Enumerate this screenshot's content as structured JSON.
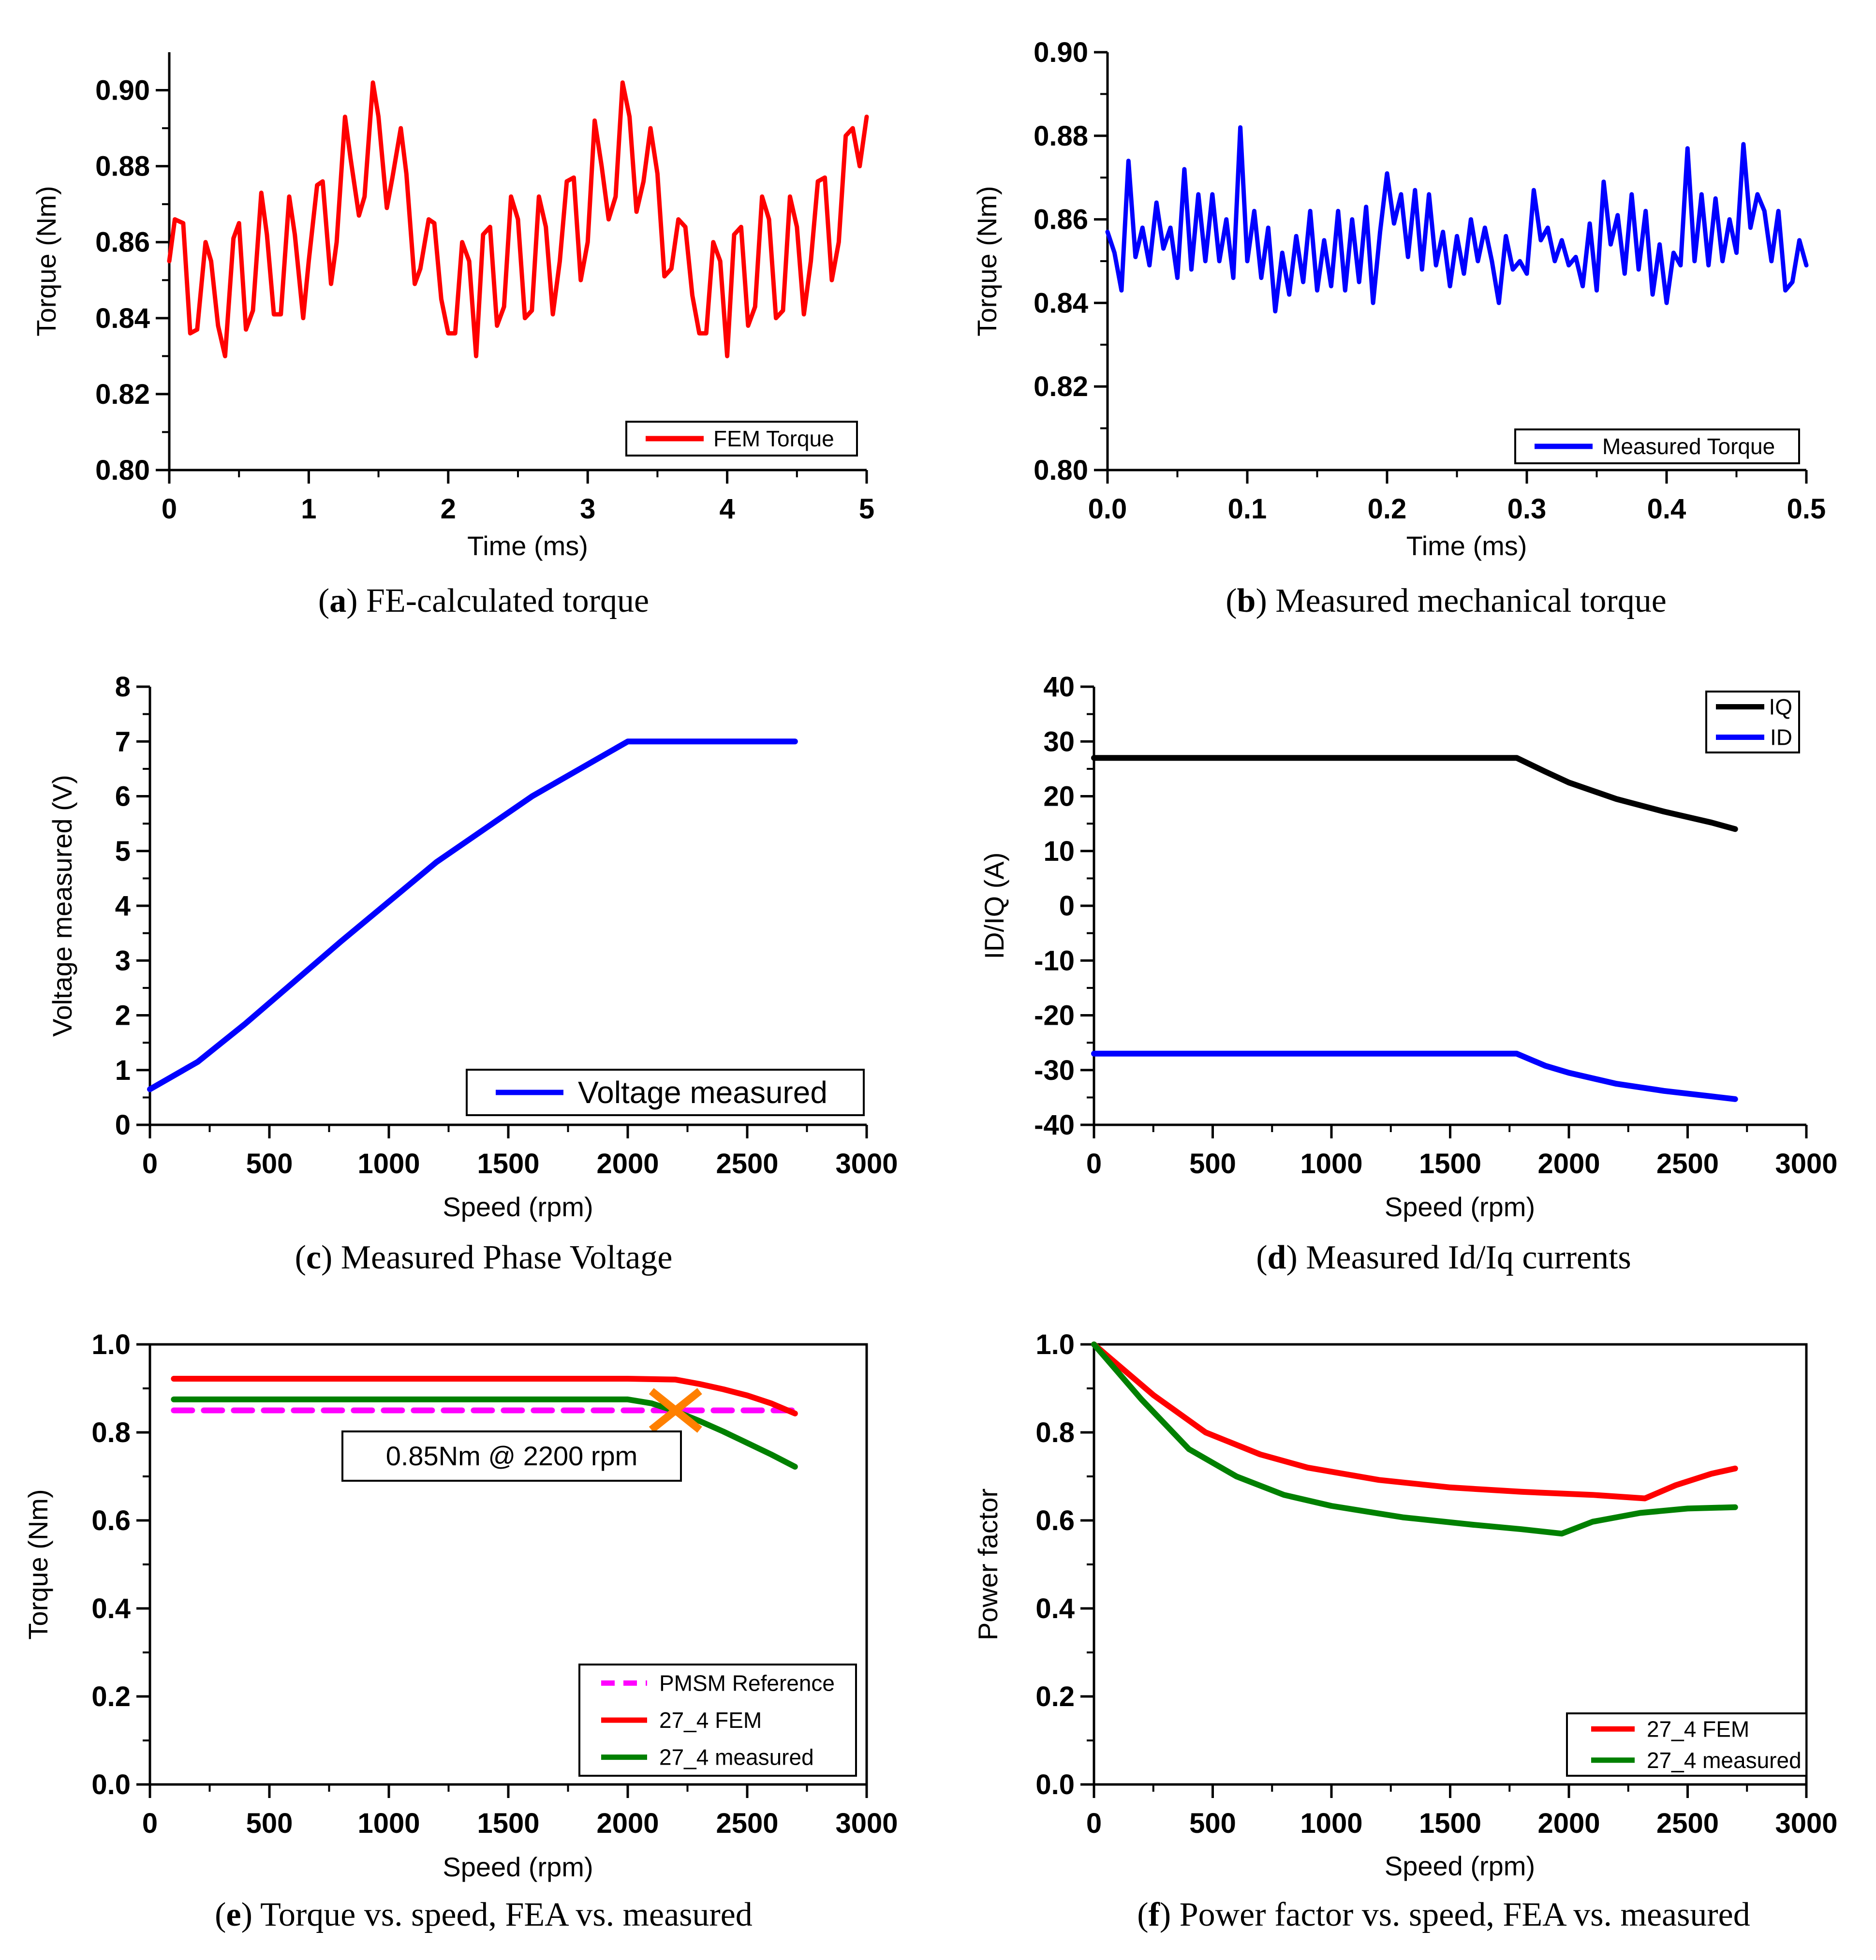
{
  "chart_data": [
    {
      "id": "a",
      "type": "line",
      "caption_letter": "a",
      "caption_text": "FE-calculated torque",
      "xlabel": "Time (ms)",
      "ylabel": "Torque (Nm)",
      "xlim": [
        0,
        5
      ],
      "ylim": [
        0.8,
        0.91
      ],
      "xticks": [
        0,
        1,
        2,
        3,
        4,
        5
      ],
      "xtick_labels": [
        "0",
        "1",
        "2",
        "3",
        "4",
        "5"
      ],
      "yticks": [
        0.8,
        0.82,
        0.84,
        0.86,
        0.88,
        0.9
      ],
      "ytick_labels": [
        "0.80",
        "0.82",
        "0.84",
        "0.86",
        "0.88",
        "0.90"
      ],
      "legend_position": "bottom-right",
      "series": [
        {
          "name": "FEM Torque",
          "color": "#ff0000",
          "x": [
            0,
            0.04,
            0.1,
            0.15,
            0.2,
            0.26,
            0.3,
            0.35,
            0.4,
            0.46,
            0.5,
            0.55,
            0.6,
            0.66,
            0.7,
            0.75,
            0.8,
            0.86,
            0.9,
            0.96,
            1.0,
            1.06,
            1.1,
            1.16,
            1.2,
            1.26,
            1.3,
            1.36,
            1.4,
            1.46,
            1.5,
            1.56,
            1.6,
            1.66,
            1.7,
            1.76,
            1.8,
            1.86,
            1.9,
            1.95,
            2.0,
            2.05,
            2.1,
            2.15,
            2.2,
            2.25,
            2.3,
            2.35,
            2.4,
            2.45,
            2.5,
            2.55,
            2.6,
            2.65,
            2.7,
            2.75,
            2.8,
            2.85,
            2.9,
            2.95,
            3.0,
            3.05,
            3.1,
            3.15,
            3.2,
            3.25,
            3.3,
            3.35,
            3.4,
            3.45,
            3.5,
            3.55,
            3.6,
            3.65,
            3.7,
            3.75,
            3.8,
            3.85,
            3.9,
            3.95,
            4.0,
            4.05,
            4.1,
            4.15,
            4.2,
            4.25,
            4.3,
            4.35,
            4.4,
            4.45,
            4.5,
            4.55,
            4.6,
            4.65,
            4.7,
            4.75,
            4.8,
            4.85,
            4.9,
            4.95,
            5.0
          ],
          "y": [
            0.855,
            0.866,
            0.865,
            0.836,
            0.837,
            0.86,
            0.855,
            0.838,
            0.83,
            0.861,
            0.865,
            0.837,
            0.842,
            0.873,
            0.862,
            0.841,
            0.841,
            0.872,
            0.862,
            0.84,
            0.855,
            0.875,
            0.876,
            0.849,
            0.86,
            0.893,
            0.882,
            0.867,
            0.872,
            0.902,
            0.893,
            0.869,
            0.877,
            0.89,
            0.878,
            0.849,
            0.853,
            0.866,
            0.865,
            0.845,
            0.836,
            0.836,
            0.86,
            0.855,
            0.83,
            0.862,
            0.864,
            0.838,
            0.843,
            0.872,
            0.866,
            0.84,
            0.842,
            0.872,
            0.864,
            0.841,
            0.855,
            0.876,
            0.877,
            0.85,
            0.86,
            0.892,
            0.88,
            0.866,
            0.872,
            0.902,
            0.893,
            0.868,
            0.876,
            0.89,
            0.878,
            0.851,
            0.853,
            0.866,
            0.864,
            0.846,
            0.836,
            0.836,
            0.86,
            0.855,
            0.83,
            0.862,
            0.864,
            0.838,
            0.843,
            0.872,
            0.866,
            0.84,
            0.842,
            0.872,
            0.864,
            0.841,
            0.855,
            0.876,
            0.877,
            0.85,
            0.86,
            0.888,
            0.89,
            0.88,
            0.893
          ]
        }
      ]
    },
    {
      "id": "b",
      "type": "line",
      "caption_letter": "b",
      "caption_text": "Measured mechanical torque",
      "xlabel": "Time (ms)",
      "ylabel": "Torque (Nm)",
      "xlim": [
        0,
        0.5
      ],
      "ylim": [
        0.8,
        0.9
      ],
      "xticks": [
        0,
        0.1,
        0.2,
        0.3,
        0.4,
        0.5
      ],
      "xtick_labels": [
        "0.0",
        "0.1",
        "0.2",
        "0.3",
        "0.4",
        "0.5"
      ],
      "yticks": [
        0.8,
        0.82,
        0.84,
        0.86,
        0.88,
        0.9
      ],
      "ytick_labels": [
        "0.80",
        "0.82",
        "0.84",
        "0.86",
        "0.88",
        "0.90"
      ],
      "legend_position": "bottom-right",
      "series": [
        {
          "name": "Measured Torque",
          "color": "#0000ff",
          "x": [
            0,
            0.005,
            0.01,
            0.015,
            0.02,
            0.025,
            0.03,
            0.035,
            0.04,
            0.045,
            0.05,
            0.055,
            0.06,
            0.065,
            0.07,
            0.075,
            0.08,
            0.085,
            0.09,
            0.095,
            0.1,
            0.105,
            0.11,
            0.115,
            0.12,
            0.125,
            0.13,
            0.135,
            0.14,
            0.145,
            0.15,
            0.155,
            0.16,
            0.165,
            0.17,
            0.175,
            0.18,
            0.185,
            0.19,
            0.195,
            0.2,
            0.205,
            0.21,
            0.215,
            0.22,
            0.225,
            0.23,
            0.235,
            0.24,
            0.245,
            0.25,
            0.255,
            0.26,
            0.265,
            0.27,
            0.275,
            0.28,
            0.285,
            0.29,
            0.295,
            0.3,
            0.305,
            0.31,
            0.315,
            0.32,
            0.325,
            0.33,
            0.335,
            0.34,
            0.345,
            0.35,
            0.355,
            0.36,
            0.365,
            0.37,
            0.375,
            0.38,
            0.385,
            0.39,
            0.395,
            0.4,
            0.405,
            0.41,
            0.415,
            0.42,
            0.425,
            0.43,
            0.435,
            0.44,
            0.445,
            0.45,
            0.455,
            0.46,
            0.465,
            0.47,
            0.475,
            0.48,
            0.485,
            0.49,
            0.495,
            0.5
          ],
          "y": [
            0.857,
            0.852,
            0.843,
            0.874,
            0.851,
            0.858,
            0.849,
            0.864,
            0.853,
            0.858,
            0.846,
            0.872,
            0.848,
            0.866,
            0.85,
            0.866,
            0.85,
            0.86,
            0.846,
            0.882,
            0.85,
            0.862,
            0.846,
            0.858,
            0.838,
            0.852,
            0.842,
            0.856,
            0.845,
            0.862,
            0.843,
            0.855,
            0.844,
            0.862,
            0.843,
            0.86,
            0.845,
            0.863,
            0.84,
            0.857,
            0.871,
            0.859,
            0.866,
            0.851,
            0.867,
            0.848,
            0.866,
            0.849,
            0.857,
            0.844,
            0.856,
            0.847,
            0.86,
            0.85,
            0.858,
            0.85,
            0.84,
            0.856,
            0.848,
            0.85,
            0.847,
            0.867,
            0.855,
            0.858,
            0.85,
            0.855,
            0.849,
            0.851,
            0.844,
            0.859,
            0.843,
            0.869,
            0.854,
            0.861,
            0.847,
            0.866,
            0.848,
            0.862,
            0.842,
            0.854,
            0.84,
            0.852,
            0.849,
            0.877,
            0.85,
            0.866,
            0.849,
            0.865,
            0.85,
            0.86,
            0.852,
            0.878,
            0.858,
            0.866,
            0.862,
            0.85,
            0.862,
            0.843,
            0.845,
            0.855,
            0.849
          ]
        }
      ]
    },
    {
      "id": "c",
      "type": "line",
      "caption_letter": "c",
      "caption_text": "Measured Phase Voltage",
      "xlabel": "Speed (rpm)",
      "ylabel": "Voltage measured (V)",
      "xlim": [
        0,
        3000
      ],
      "ylim": [
        0,
        8
      ],
      "xticks": [
        0,
        500,
        1000,
        1500,
        2000,
        2500,
        3000
      ],
      "xtick_labels": [
        "0",
        "500",
        "1000",
        "1500",
        "2000",
        "2500",
        "3000"
      ],
      "yticks": [
        0,
        1,
        2,
        3,
        4,
        5,
        6,
        7,
        8
      ],
      "ytick_labels": [
        "0",
        "1",
        "2",
        "3",
        "4",
        "5",
        "6",
        "7",
        "8"
      ],
      "legend_position": "bottom-right",
      "series": [
        {
          "name": "Voltage measured",
          "color": "#0000ff",
          "x": [
            0,
            200,
            400,
            800,
            1200,
            1600,
            2000,
            2300,
            2700
          ],
          "y": [
            0.65,
            1.15,
            1.85,
            3.35,
            4.8,
            6.0,
            7.0,
            7.0,
            7.0
          ]
        }
      ]
    },
    {
      "id": "d",
      "type": "line",
      "caption_letter": "d",
      "caption_text": "Measured Id/Iq currents",
      "xlabel": "Speed (rpm)",
      "ylabel": "ID/IQ (A)",
      "xlim": [
        0,
        3000
      ],
      "ylim": [
        -40,
        40
      ],
      "xticks": [
        0,
        500,
        1000,
        1500,
        2000,
        2500,
        3000
      ],
      "xtick_labels": [
        "0",
        "500",
        "1000",
        "1500",
        "2000",
        "2500",
        "3000"
      ],
      "yticks": [
        -40,
        -30,
        -20,
        -10,
        0,
        10,
        20,
        30,
        40
      ],
      "ytick_labels": [
        "-40",
        "-30",
        "-20",
        "-10",
        "0",
        "10",
        "20",
        "30",
        "40"
      ],
      "legend_position": "top-right",
      "series": [
        {
          "name": "IQ",
          "color": "#000000",
          "x": [
            0,
            500,
            1000,
            1500,
            1780,
            1900,
            2000,
            2200,
            2400,
            2600,
            2700
          ],
          "y": [
            27,
            27,
            27,
            27,
            27,
            24.5,
            22.5,
            19.5,
            17.2,
            15.2,
            14
          ]
        },
        {
          "name": "ID",
          "color": "#0000ff",
          "x": [
            0,
            500,
            1000,
            1500,
            1780,
            1900,
            2000,
            2200,
            2400,
            2600,
            2700
          ],
          "y": [
            -27,
            -27,
            -27,
            -27,
            -27,
            -29.2,
            -30.5,
            -32.5,
            -33.8,
            -34.8,
            -35.3
          ]
        }
      ]
    },
    {
      "id": "e",
      "type": "line",
      "caption_letter": "e",
      "caption_text": "Torque vs. speed, FEA vs. measured",
      "xlabel": "Speed (rpm)",
      "ylabel": "Torque (Nm)",
      "xlim": [
        0,
        3000
      ],
      "ylim": [
        0,
        1.0
      ],
      "xticks": [
        0,
        500,
        1000,
        1500,
        2000,
        2500,
        3000
      ],
      "xtick_labels": [
        "0",
        "500",
        "1000",
        "1500",
        "2000",
        "2500",
        "3000"
      ],
      "yticks": [
        0,
        0.2,
        0.4,
        0.6,
        0.8,
        1.0
      ],
      "ytick_labels": [
        "0.0",
        "0.2",
        "0.4",
        "0.6",
        "0.8",
        "1.0"
      ],
      "legend_position": "bottom-right",
      "annotation": {
        "text": "0.85Nm @ 2200 rpm",
        "marker_x": 2200,
        "marker_y": 0.85,
        "marker_color": "#ff8000"
      },
      "series": [
        {
          "name": "PMSM Reference",
          "color": "#ff00ff",
          "dashed": true,
          "x": [
            100,
            2700
          ],
          "y": [
            0.85,
            0.85
          ]
        },
        {
          "name": "27_4 FEM",
          "color": "#ff0000",
          "x": [
            100,
            500,
            1000,
            1500,
            2000,
            2200,
            2300,
            2400,
            2500,
            2600,
            2700
          ],
          "y": [
            0.922,
            0.922,
            0.922,
            0.922,
            0.922,
            0.92,
            0.91,
            0.898,
            0.884,
            0.866,
            0.843
          ]
        },
        {
          "name": "27_4 measured",
          "color": "#008000",
          "x": [
            100,
            500,
            1000,
            1500,
            2000,
            2100,
            2200,
            2300,
            2400,
            2500,
            2600,
            2700
          ],
          "y": [
            0.875,
            0.875,
            0.875,
            0.875,
            0.875,
            0.866,
            0.848,
            0.826,
            0.802,
            0.776,
            0.75,
            0.722
          ]
        }
      ]
    },
    {
      "id": "f",
      "type": "line",
      "caption_letter": "f",
      "caption_text": "Power factor vs. speed, FEA vs. measured",
      "xlabel": "Speed (rpm)",
      "ylabel": "Power factor",
      "xlim": [
        0,
        3000
      ],
      "ylim": [
        0,
        1.0
      ],
      "xticks": [
        0,
        500,
        1000,
        1500,
        2000,
        2500,
        3000
      ],
      "xtick_labels": [
        "0",
        "500",
        "1000",
        "1500",
        "2000",
        "2500",
        "3000"
      ],
      "yticks": [
        0,
        0.2,
        0.4,
        0.6,
        0.8,
        1.0
      ],
      "ytick_labels": [
        "0.0",
        "0.2",
        "0.4",
        "0.6",
        "0.8",
        "1.0"
      ],
      "legend_position": "bottom-right",
      "series": [
        {
          "name": "27_4 FEM",
          "color": "#ff0000",
          "x": [
            0,
            250,
            470,
            700,
            900,
            1200,
            1500,
            1800,
            2100,
            2320,
            2450,
            2600,
            2700
          ],
          "y": [
            1.0,
            0.885,
            0.8,
            0.75,
            0.72,
            0.692,
            0.675,
            0.665,
            0.658,
            0.65,
            0.68,
            0.706,
            0.718
          ]
        },
        {
          "name": "27_4 measured",
          "color": "#008000",
          "x": [
            0,
            200,
            400,
            600,
            800,
            1000,
            1300,
            1600,
            1800,
            1970,
            2100,
            2300,
            2500,
            2700
          ],
          "y": [
            1.0,
            0.875,
            0.762,
            0.7,
            0.658,
            0.633,
            0.607,
            0.59,
            0.58,
            0.57,
            0.597,
            0.617,
            0.627,
            0.63
          ]
        }
      ]
    }
  ]
}
